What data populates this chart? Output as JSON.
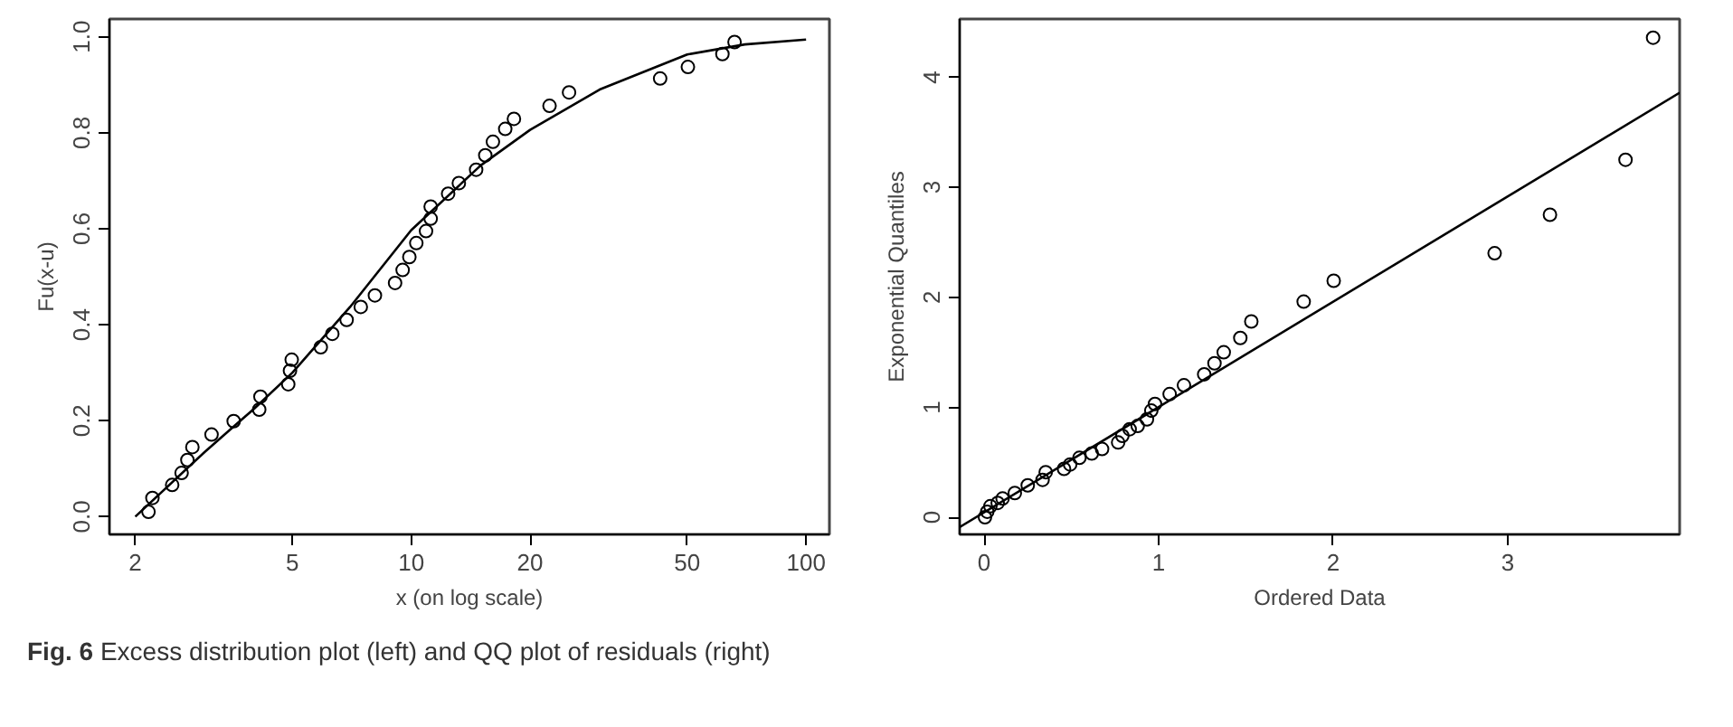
{
  "chart_data": [
    {
      "type": "scatter",
      "xlabel": "x (on log scale)",
      "ylabel": "Fu(x-u)",
      "log": "x",
      "grid": false,
      "xlim": [
        1.72,
        114.6
      ],
      "ylim": [
        -0.037,
        1.037
      ],
      "xticks": [
        2,
        5,
        10,
        20,
        50,
        100
      ],
      "yticks": [
        {
          "value": 0,
          "label": "0.0"
        },
        0.2,
        0.4,
        0.6,
        0.8,
        {
          "value": 1,
          "label": "1.0"
        }
      ],
      "annotations": [
        "Fig. 6",
        "Excess distribution plot (left) and QQ plot of residuals (right)"
      ],
      "series": [
        {
          "marker": "circle",
          "color": "#000000",
          "x": [
            2.16,
            2.21,
            2.48,
            2.62,
            2.71,
            2.79,
            3.12,
            3.55,
            4.12,
            4.15,
            4.88,
            4.93,
            4.98,
            5.9,
            6.31,
            6.86,
            7.45,
            8.09,
            9.1,
            9.51,
            9.89,
            10.3,
            10.9,
            11.2,
            11.2,
            12.4,
            13.2,
            14.6,
            15.4,
            16.1,
            17.3,
            18.2,
            22.4,
            25.1,
            42.7,
            50.2,
            61.4,
            65.9
          ],
          "values": [
            0.01,
            0.039,
            0.066,
            0.091,
            0.118,
            0.145,
            0.171,
            0.199,
            0.223,
            0.25,
            0.276,
            0.304,
            0.327,
            0.353,
            0.381,
            0.41,
            0.437,
            0.461,
            0.487,
            0.514,
            0.541,
            0.57,
            0.595,
            0.621,
            0.646,
            0.673,
            0.695,
            0.723,
            0.753,
            0.781,
            0.808,
            0.829,
            0.856,
            0.884,
            0.913,
            0.937,
            0.964,
            0.989
          ]
        },
        {
          "type": "line",
          "line_style": "solid",
          "color": "#000000",
          "x": [
            2,
            3,
            4,
            5,
            7,
            10,
            15,
            20,
            30,
            50,
            70,
            100
          ],
          "values": [
            0,
            0.135,
            0.225,
            0.3,
            0.437,
            0.597,
            0.732,
            0.806,
            0.89,
            0.963,
            0.984,
            0.994
          ]
        }
      ]
    },
    {
      "type": "scatter",
      "xlabel": "Ordered Data",
      "ylabel": "Exponential Quantiles",
      "grid": false,
      "xlim": [
        -0.14,
        3.985
      ],
      "ylim": [
        -0.156,
        4.53
      ],
      "xticks": [
        0,
        1,
        2,
        3
      ],
      "yticks": [
        0,
        1,
        2,
        3,
        4
      ],
      "series": [
        {
          "marker": "circle",
          "color": "#000000",
          "x": [
            0.005,
            0.018,
            0.036,
            0.078,
            0.106,
            0.176,
            0.25,
            0.335,
            0.353,
            0.458,
            0.493,
            0.546,
            0.617,
            0.676,
            0.768,
            0.792,
            0.834,
            0.88,
            0.933,
            0.958,
            0.979,
            1.063,
            1.145,
            1.261,
            1.32,
            1.373,
            1.468,
            1.531,
            1.831,
            2.003,
            2.925,
            3.242,
            3.675,
            3.833
          ],
          "values": [
            0.0,
            0.05,
            0.1,
            0.13,
            0.17,
            0.22,
            0.29,
            0.34,
            0.41,
            0.44,
            0.48,
            0.54,
            0.58,
            0.62,
            0.68,
            0.74,
            0.8,
            0.83,
            0.89,
            0.97,
            1.03,
            1.12,
            1.2,
            1.3,
            1.4,
            1.5,
            1.63,
            1.78,
            1.96,
            2.15,
            2.4,
            2.75,
            3.25,
            4.36
          ]
        },
        {
          "type": "line",
          "line_style": "solid",
          "color": "#000000",
          "x": [
            -0.14,
            3.985
          ],
          "values": [
            -0.09,
            3.86
          ]
        }
      ]
    }
  ]
}
